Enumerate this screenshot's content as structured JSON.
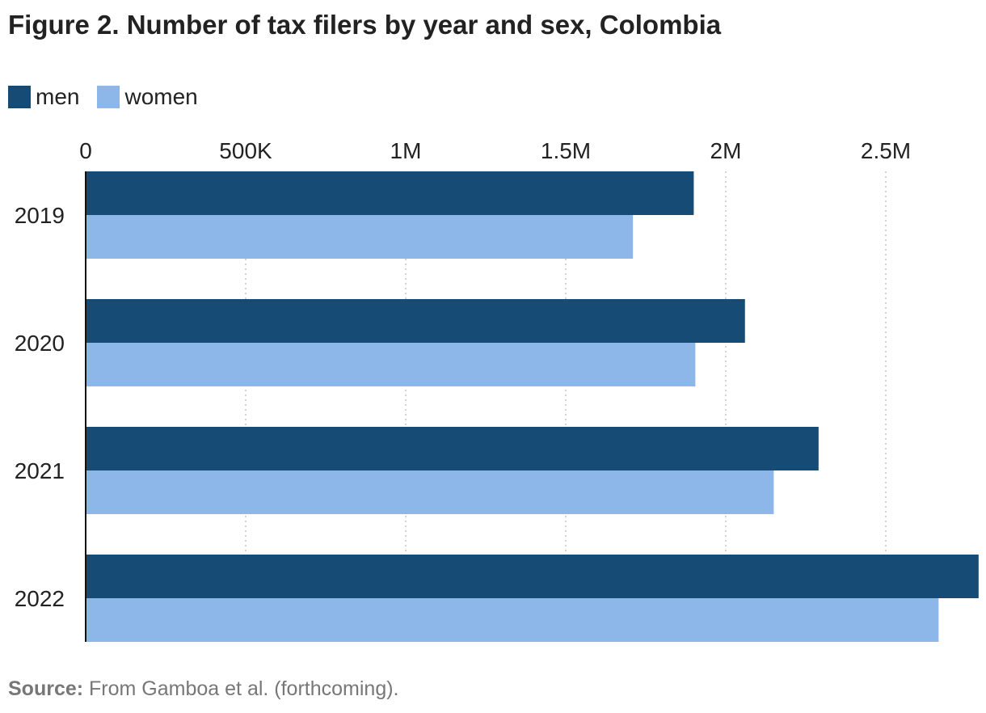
{
  "title": "Figure 2. Number of tax filers by year and sex, Colombia",
  "source_label": "Source:",
  "source_text": " From Gamboa et al. (forthcoming).",
  "colors": {
    "men": "#154b74",
    "women": "#8db7e8",
    "grid": "#c4c4c4",
    "axis": "#111111"
  },
  "chart_data": {
    "type": "bar",
    "orientation": "horizontal",
    "categories": [
      "2019",
      "2020",
      "2021",
      "2022"
    ],
    "series": [
      {
        "name": "men",
        "values": [
          1900000,
          2060000,
          2290000,
          2790000
        ]
      },
      {
        "name": "women",
        "values": [
          1710000,
          1905000,
          2150000,
          2665000
        ]
      }
    ],
    "x_ticks": [
      0,
      500000,
      1000000,
      1500000,
      2000000,
      2500000
    ],
    "x_tick_labels": [
      "0",
      "500K",
      "1M",
      "1.5M",
      "2M",
      "2.5M"
    ],
    "xlim": [
      0,
      2790000
    ],
    "grid": true,
    "legend_position": "top-left",
    "xlabel": "",
    "ylabel": ""
  }
}
